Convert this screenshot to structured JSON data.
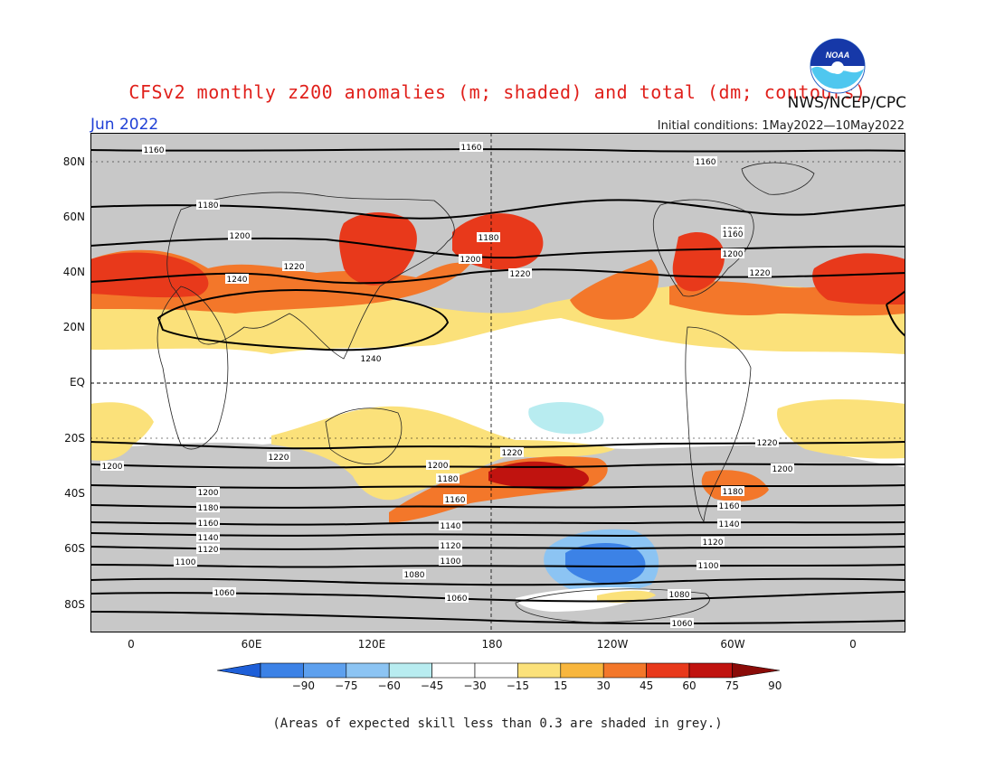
{
  "title": "CFSv2 monthly z200 anomalies (m; shaded) and total (dm; contours)",
  "credit": "NWS/NCEP/CPC",
  "month_label": "Jun 2022",
  "initial_conditions": "Initial conditions: 1May2022—10May2022",
  "logo_text": "NOAA",
  "lat_labels": [
    "80N",
    "60N",
    "40N",
    "20N",
    "EQ",
    "20S",
    "40S",
    "60S",
    "80S"
  ],
  "lon_labels": [
    "0",
    "60E",
    "120E",
    "180",
    "120W",
    "60W",
    "0"
  ],
  "colorbar": {
    "labels": [
      "−90",
      "−75",
      "−60",
      "−45",
      "−30",
      "−15",
      "15",
      "30",
      "45",
      "60",
      "75",
      "90"
    ],
    "colors": [
      "#1e5fd8",
      "#3c82e6",
      "#5da0ee",
      "#8cc4f3",
      "#b8ecf0",
      "#ffffff",
      "#ffffff",
      "#fbe17a",
      "#f8b63d",
      "#f3772a",
      "#e8391b",
      "#c0130f",
      "#8a0b08"
    ]
  },
  "map_colors": {
    "ocean_grey": "#c8c8c8",
    "skill_white": "#ffffff",
    "land_line": "#222222",
    "contour": "#000000"
  },
  "contour_labels": [
    "1160",
    "1160",
    "1160",
    "1180",
    "1180",
    "1200",
    "1200",
    "1220",
    "1240",
    "1200",
    "1220",
    "1200",
    "1220",
    "1240",
    "1160",
    "1200",
    "1220",
    "1200",
    "1180",
    "1160",
    "1140",
    "1120",
    "1100",
    "1080",
    "1060",
    "1220",
    "1200",
    "1180",
    "1160",
    "1140",
    "1120",
    "1100",
    "1080",
    "1060",
    "1220",
    "1200",
    "1180",
    "1160",
    "1140",
    "1120",
    "1100",
    "1080",
    "1060"
  ],
  "note": "(Areas of expected skill less than 0.3 are shaded in grey.)"
}
